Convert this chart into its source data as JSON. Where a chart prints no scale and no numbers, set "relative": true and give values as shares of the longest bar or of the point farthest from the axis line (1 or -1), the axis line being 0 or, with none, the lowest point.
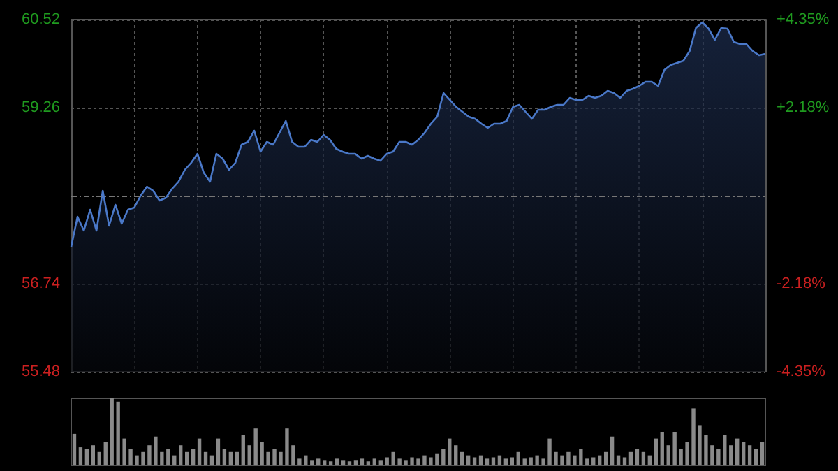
{
  "chart_data": [
    {
      "type": "area",
      "categories": [
        null,
        null,
        null,
        null,
        null,
        null,
        null,
        null,
        null,
        null,
        null,
        null,
        null,
        null,
        null,
        null,
        null,
        null,
        null,
        null,
        null,
        null,
        null,
        null,
        null,
        null,
        null,
        null,
        null,
        null,
        null,
        null,
        null,
        null,
        null,
        null,
        null,
        null,
        null,
        null,
        null,
        null,
        null,
        null,
        null,
        null,
        null,
        null,
        null,
        null,
        null,
        null,
        null,
        null,
        null,
        null,
        null,
        null,
        null,
        null,
        null,
        null,
        null,
        null,
        null,
        null,
        null,
        null,
        null,
        null,
        null,
        null,
        null,
        null,
        null,
        null,
        null,
        null,
        null,
        null,
        null,
        null,
        null,
        null,
        null,
        null,
        null,
        null,
        null,
        null,
        null,
        null,
        null,
        null,
        null,
        null,
        null,
        null,
        null,
        null,
        null,
        null,
        null,
        null,
        null,
        null,
        null,
        null,
        null,
        null,
        null
      ],
      "series": [
        {
          "color": "#4a78c8",
          "values": [
            57.27,
            57.7,
            57.5,
            57.8,
            57.5,
            58.07,
            57.57,
            57.87,
            57.6,
            57.8,
            57.83,
            58.0,
            58.13,
            58.07,
            57.93,
            57.97,
            58.1,
            58.2,
            58.37,
            58.47,
            58.6,
            58.33,
            58.2,
            58.6,
            58.53,
            58.37,
            58.47,
            58.73,
            58.77,
            58.93,
            58.63,
            58.77,
            58.73,
            58.9,
            59.07,
            58.77,
            58.7,
            58.7,
            58.8,
            58.77,
            58.87,
            58.8,
            58.67,
            58.63,
            58.6,
            58.6,
            58.53,
            58.57,
            58.53,
            58.5,
            58.6,
            58.63,
            58.77,
            58.77,
            58.73,
            58.8,
            58.9,
            59.03,
            59.13,
            59.47,
            59.37,
            59.27,
            59.2,
            59.13,
            59.1,
            59.03,
            58.97,
            59.03,
            59.03,
            59.07,
            59.27,
            59.3,
            59.2,
            59.1,
            59.23,
            59.23,
            59.27,
            59.3,
            59.3,
            59.4,
            59.37,
            59.37,
            59.43,
            59.4,
            59.43,
            59.5,
            59.47,
            59.4,
            59.5,
            59.53,
            59.57,
            59.63,
            59.63,
            59.57,
            59.8,
            59.87,
            59.9,
            59.93,
            60.07,
            60.4,
            60.48,
            60.39,
            60.23,
            60.4,
            60.39,
            60.2,
            60.17,
            60.17,
            60.07,
            60.01,
            60.03
          ]
        }
      ],
      "ylim": [
        55.48,
        60.52
      ],
      "yticks": [
        55.48,
        56.74,
        59.26,
        60.52
      ],
      "y2lim": [
        -4.35,
        4.35
      ],
      "y2ticks": [
        {
          "value": -4.35,
          "label": "-4.35%"
        },
        {
          "value": -2.18,
          "label": "-2.18%"
        },
        {
          "value": 2.18,
          "label": "+2.18%"
        },
        {
          "value": 4.35,
          "label": "+4.35%"
        }
      ],
      "ref_lines": [
        {
          "axis": "y",
          "value": 58.0,
          "label": null
        }
      ],
      "grid": true,
      "tick_labels": "y"
    },
    {
      "type": "bar",
      "relative": true,
      "categories": [
        null,
        null,
        null,
        null,
        null,
        null,
        null,
        null,
        null,
        null,
        null,
        null,
        null,
        null,
        null,
        null,
        null,
        null,
        null,
        null,
        null,
        null,
        null,
        null,
        null,
        null,
        null,
        null,
        null,
        null,
        null,
        null,
        null,
        null,
        null,
        null,
        null,
        null,
        null,
        null,
        null,
        null,
        null,
        null,
        null,
        null,
        null,
        null,
        null,
        null,
        null,
        null,
        null,
        null,
        null,
        null,
        null,
        null,
        null,
        null,
        null,
        null,
        null,
        null,
        null,
        null,
        null,
        null,
        null,
        null,
        null,
        null,
        null,
        null,
        null,
        null,
        null,
        null,
        null,
        null,
        null,
        null,
        null,
        null,
        null,
        null,
        null,
        null,
        null,
        null,
        null,
        null,
        null,
        null,
        null,
        null,
        null,
        null,
        null,
        null,
        null,
        null,
        null,
        null,
        null,
        null,
        null,
        null,
        null,
        null,
        null
      ],
      "series": [
        {
          "color": "#8a8a8a",
          "values": [
            0.47,
            0.27,
            0.25,
            0.3,
            0.2,
            0.35,
            1.0,
            0.95,
            0.4,
            0.25,
            0.15,
            0.2,
            0.3,
            0.43,
            0.2,
            0.25,
            0.15,
            0.3,
            0.2,
            0.25,
            0.4,
            0.2,
            0.15,
            0.4,
            0.25,
            0.2,
            0.2,
            0.45,
            0.3,
            0.55,
            0.35,
            0.2,
            0.25,
            0.2,
            0.55,
            0.3,
            0.1,
            0.15,
            0.08,
            0.1,
            0.08,
            0.06,
            0.1,
            0.08,
            0.06,
            0.08,
            0.1,
            0.06,
            0.1,
            0.08,
            0.12,
            0.2,
            0.1,
            0.08,
            0.12,
            0.1,
            0.15,
            0.12,
            0.18,
            0.25,
            0.4,
            0.3,
            0.2,
            0.15,
            0.12,
            0.15,
            0.1,
            0.12,
            0.15,
            0.1,
            0.12,
            0.2,
            0.1,
            0.12,
            0.15,
            0.1,
            0.4,
            0.2,
            0.15,
            0.2,
            0.15,
            0.25,
            0.1,
            0.12,
            0.15,
            0.2,
            0.43,
            0.15,
            0.12,
            0.2,
            0.25,
            0.2,
            0.15,
            0.4,
            0.5,
            0.3,
            0.5,
            0.25,
            0.35,
            0.85,
            0.6,
            0.45,
            0.3,
            0.25,
            0.45,
            0.3,
            0.4,
            0.35,
            0.3,
            0.25,
            0.35
          ]
        }
      ],
      "tick_labels": false
    }
  ]
}
